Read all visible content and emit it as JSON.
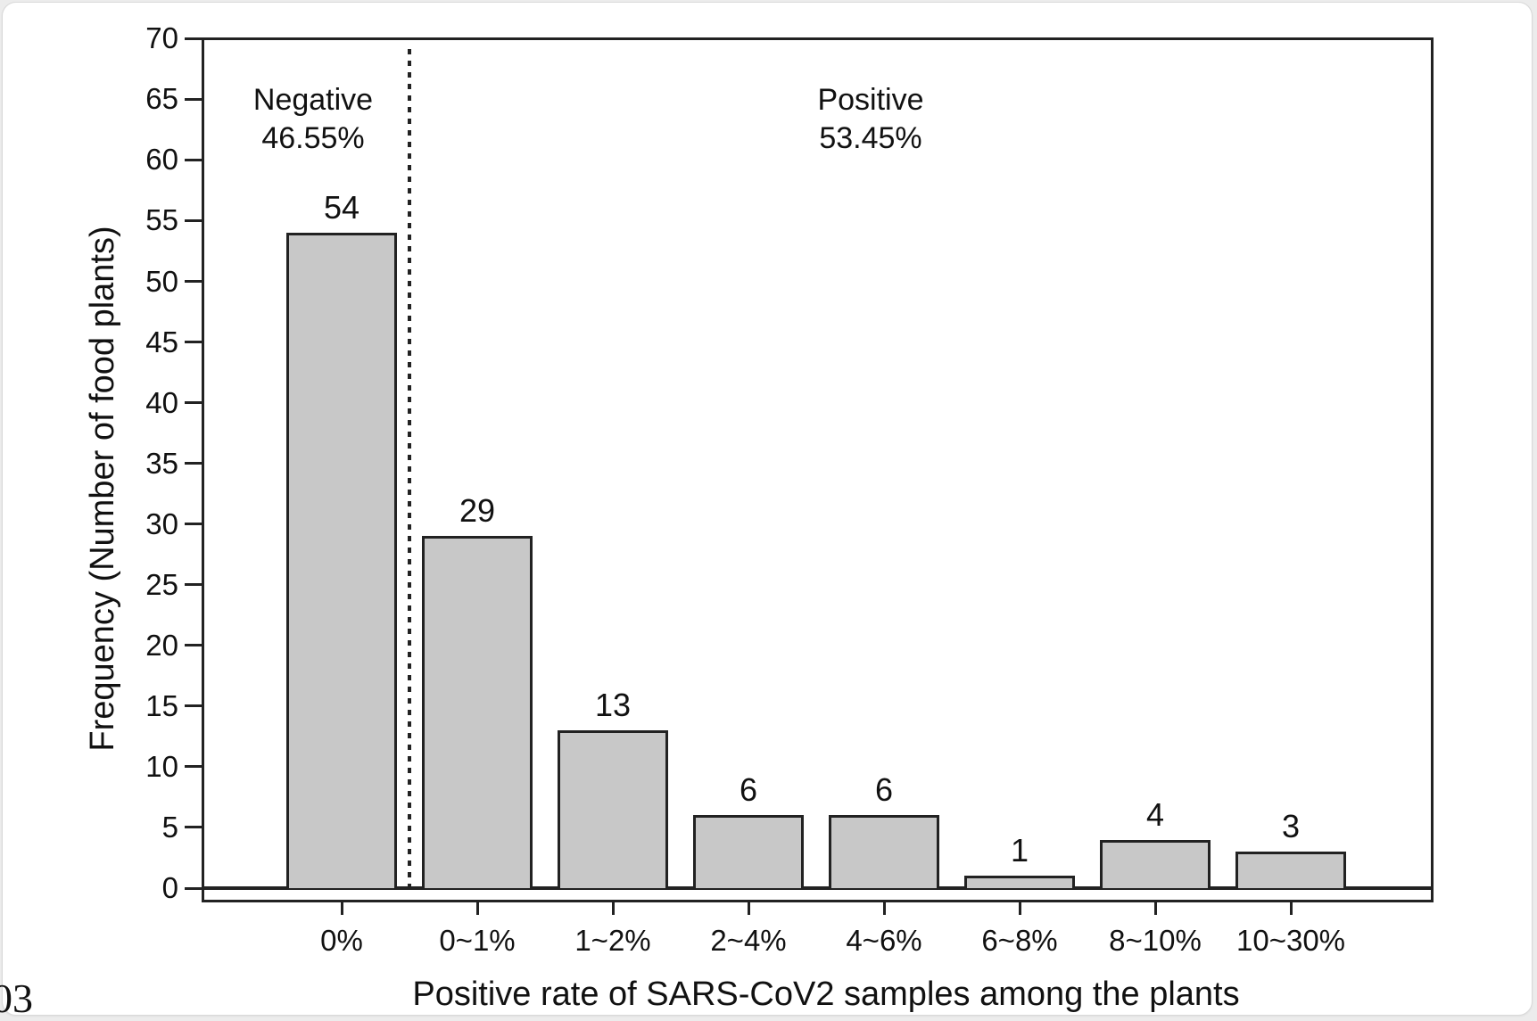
{
  "chart_data": {
    "type": "bar",
    "categories": [
      "0%",
      "0~1%",
      "1~2%",
      "2~4%",
      "4~6%",
      "6~8%",
      "8~10%",
      "10~30%"
    ],
    "values": [
      54,
      29,
      13,
      6,
      6,
      1,
      4,
      3
    ],
    "xlabel": "Positive rate of SARS-CoV2 samples among the plants",
    "ylabel": "Frequency (Number of food plants)",
    "ylim": [
      0,
      70
    ],
    "yticks": [
      0,
      5,
      10,
      15,
      20,
      25,
      30,
      35,
      40,
      45,
      50,
      55,
      60,
      65,
      70
    ],
    "grid": false,
    "legend": "none",
    "bar_value_labels_shown": true,
    "annotations": {
      "negative": {
        "line1": "Negative",
        "line2": "46.55%"
      },
      "positive": {
        "line1": "Positive",
        "line2": "53.45%"
      },
      "divider_after_index": 0,
      "divider_style": "dotted-vertical-line"
    },
    "colors": {
      "bar_fill": "#c8c8c8",
      "bar_border": "#222222",
      "axis": "#222222",
      "text": "#111111",
      "background": "#ffffff"
    }
  },
  "footer": {
    "corner_text": "03"
  }
}
